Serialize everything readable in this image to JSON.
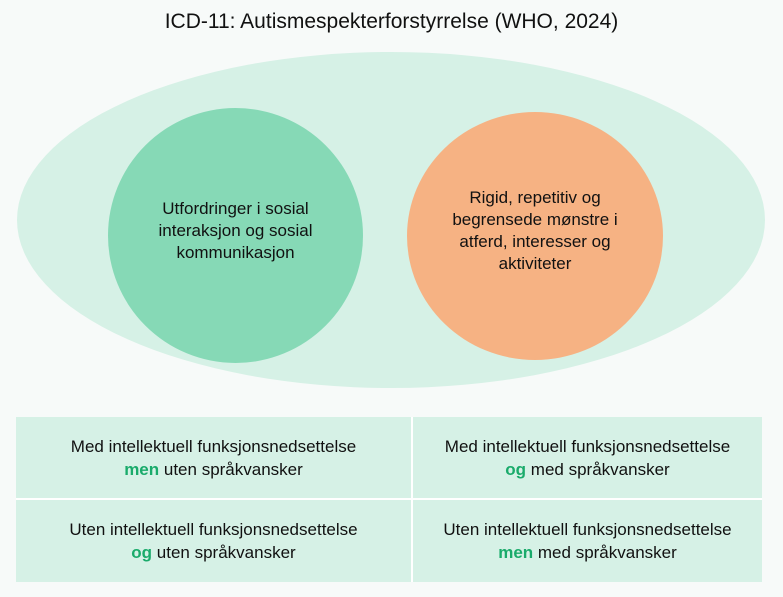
{
  "title": "ICD-11: Autismespekterforstyrrelse (WHO, 2024)",
  "circles": [
    {
      "text": "Utfordringer i sosial interaksjon og sosial kommunikasjon",
      "color": "#86d9b6"
    },
    {
      "text": "Rigid, repetitiv og begrensede mønstre i atferd, interesser og aktiviteter",
      "color": "#f6b283"
    }
  ],
  "grid": [
    {
      "line1": "Med intellektuell funksjonsnedsettelse",
      "keyword": "men",
      "rest": " uten språkvansker"
    },
    {
      "line1": "Med intellektuell funksjonsnedsettelse",
      "keyword": "og",
      "rest": " med språkvansker"
    },
    {
      "line1": "Uten intellektuell funksjonsnedsettelse",
      "keyword": "og",
      "rest": " uten språkvansker"
    },
    {
      "line1": "Uten intellektuell funksjonsnedsettelse",
      "keyword": "men",
      "rest": " med språkvansker"
    }
  ],
  "colors": {
    "ellipse": "#d6f1e6",
    "keyword": "#1aab6b"
  }
}
